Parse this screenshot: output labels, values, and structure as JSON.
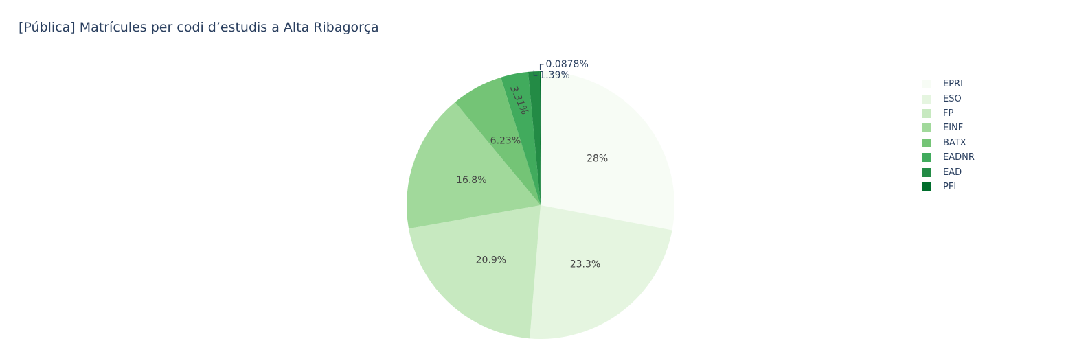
{
  "chart_data": {
    "type": "pie",
    "title": "[Pública] Matrícules per codi d’estudis a Alta Ribagorça",
    "slices": [
      {
        "label": "EPRI",
        "value": 28.0,
        "display": "28%",
        "color": "#f7fcf5"
      },
      {
        "label": "ESO",
        "value": 23.3,
        "display": "23.3%",
        "color": "#e5f5e0"
      },
      {
        "label": "FP",
        "value": 20.9,
        "display": "20.9%",
        "color": "#c7e9c0"
      },
      {
        "label": "EINF",
        "value": 16.8,
        "display": "16.8%",
        "color": "#a1d99b"
      },
      {
        "label": "BATX",
        "value": 6.23,
        "display": "6.23%",
        "color": "#74c476"
      },
      {
        "label": "EADNR",
        "value": 3.31,
        "display": "3.31%",
        "color": "#41ab5d"
      },
      {
        "label": "EAD",
        "value": 1.39,
        "display": "1.39%",
        "color": "#238b45"
      },
      {
        "label": "PFI",
        "value": 0.0878,
        "display": "0.0878%",
        "color": "#006d2c"
      }
    ],
    "legend_position": "top-right",
    "text_color": "#2a3f5f",
    "slice_text_color": "#444444"
  }
}
